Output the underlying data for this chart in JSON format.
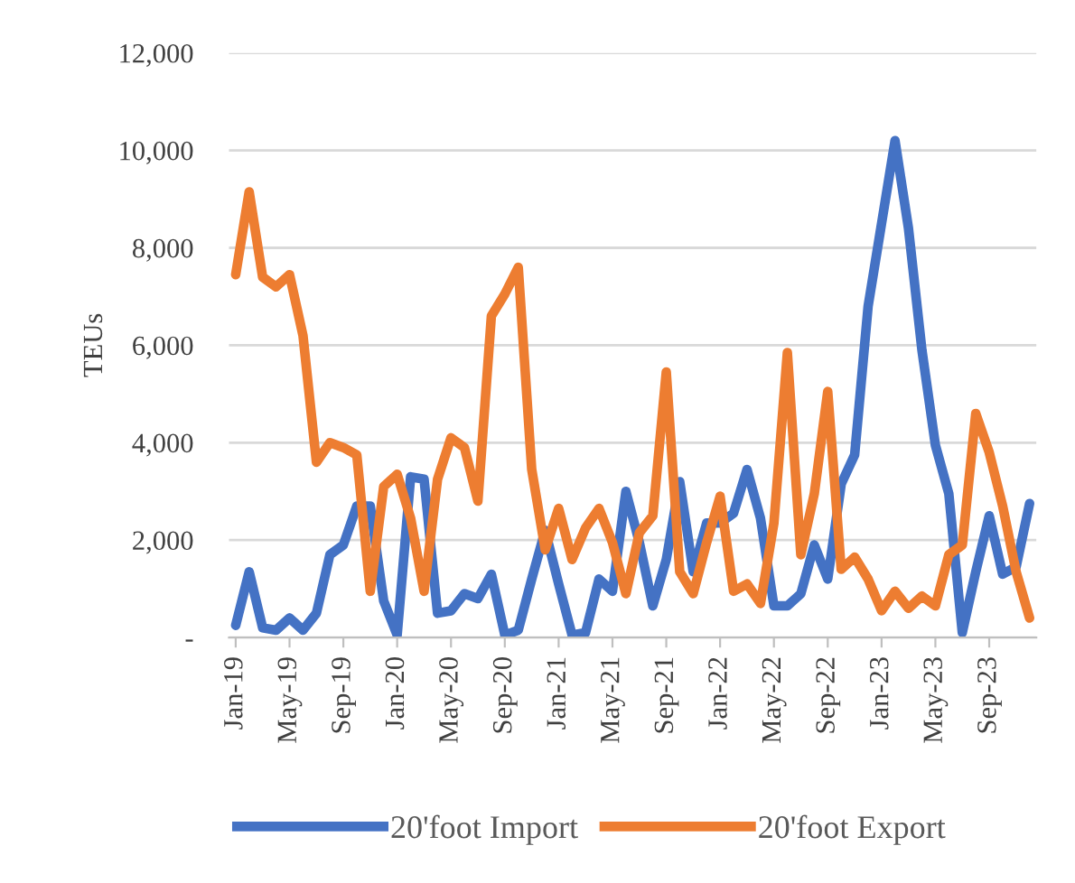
{
  "chart_data": {
    "type": "line",
    "ylabel": "TEUs",
    "categories": [
      "Jan-19",
      null,
      null,
      null,
      "May-19",
      null,
      null,
      null,
      "Sep-19",
      null,
      null,
      null,
      "Jan-20",
      null,
      null,
      null,
      "May-20",
      null,
      null,
      null,
      "Sep-20",
      null,
      null,
      null,
      "Jan-21",
      null,
      null,
      null,
      "May-21",
      null,
      null,
      null,
      "Sep-21",
      null,
      null,
      null,
      "Jan-22",
      null,
      null,
      null,
      "May-22",
      null,
      null,
      null,
      "Sep-22",
      null,
      null,
      null,
      "Jan-23",
      null,
      null,
      null,
      "May-23",
      null,
      null,
      null,
      "Sep-23",
      null,
      null,
      null
    ],
    "series": [
      {
        "name": "20'foot Import",
        "color": "#4472c4",
        "values": [
          250,
          1350,
          200,
          150,
          400,
          150,
          500,
          1700,
          1900,
          2700,
          2700,
          750,
          50,
          3300,
          3250,
          500,
          550,
          900,
          800,
          1300,
          50,
          150,
          1200,
          2200,
          1100,
          50,
          100,
          1200,
          950,
          3000,
          1950,
          650,
          1600,
          3200,
          1350,
          2350,
          2350,
          2550,
          3450,
          2450,
          650,
          650,
          900,
          1900,
          1200,
          3150,
          3750,
          6800,
          8500,
          10200,
          8400,
          5900,
          3950,
          2950,
          100,
          1350,
          2500,
          1300,
          1450,
          2750
        ]
      },
      {
        "name": "20'foot Export",
        "color": "#ed7d31",
        "values": [
          7450,
          9150,
          7400,
          7200,
          7450,
          6200,
          3600,
          4000,
          3900,
          3750,
          950,
          3100,
          3350,
          2450,
          950,
          3250,
          4100,
          3900,
          2800,
          6600,
          7050,
          7600,
          3450,
          1800,
          2650,
          1600,
          2250,
          2650,
          1950,
          900,
          2150,
          2500,
          5450,
          1350,
          900,
          1950,
          2900,
          950,
          1100,
          700,
          2350,
          5850,
          1700,
          2950,
          5050,
          1400,
          1650,
          1200,
          550,
          950,
          600,
          850,
          650,
          1700,
          1900,
          4600,
          3800,
          2700,
          1350,
          400
        ]
      }
    ],
    "ylim": [
      0,
      12000
    ],
    "yticks": [
      {
        "value": 0,
        "label": "-"
      },
      {
        "value": 2000,
        "label": "2,000"
      },
      {
        "value": 4000,
        "label": "4,000"
      },
      {
        "value": 6000,
        "label": "6,000"
      },
      {
        "value": 8000,
        "label": "8,000"
      },
      {
        "value": 10000,
        "label": "10,000"
      },
      {
        "value": 12000,
        "label": "12,000"
      }
    ],
    "grid": "y",
    "legend": "bottom",
    "marker": "none",
    "line_style": "solid"
  }
}
